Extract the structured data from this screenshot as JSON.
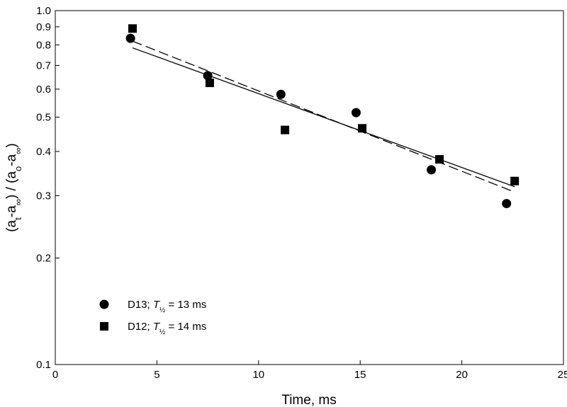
{
  "chart_data": {
    "type": "scatter",
    "title": "",
    "xlabel": "Time, ms",
    "ylabel": "(at-a∞) / (ao-a∞)",
    "xlim": [
      0,
      25
    ],
    "ylim": [
      0.1,
      1.0
    ],
    "yscale": "log",
    "x_ticks": [
      0,
      5,
      10,
      15,
      20,
      25
    ],
    "y_ticks": [
      0.1,
      0.2,
      0.3,
      0.4,
      0.5,
      0.6,
      0.7,
      0.8,
      0.9,
      1.0
    ],
    "x_tick_labels": [
      "0",
      "5",
      "10",
      "15",
      "20",
      "25"
    ],
    "y_tick_labels": [
      "0.1",
      "0.2",
      "0.3",
      "0.4",
      "0.5",
      "0.6",
      "0.7",
      "0.8",
      "0.9",
      "1.0"
    ],
    "grid": false,
    "legend_position": "bottom-left",
    "series": [
      {
        "name": "D13",
        "half_life_label": "13 ms",
        "marker": "circle",
        "fit_line": "solid",
        "x": [
          3.7,
          7.5,
          11.1,
          14.8,
          18.5,
          22.2
        ],
        "y": [
          0.835,
          0.655,
          0.58,
          0.515,
          0.355,
          0.285
        ],
        "fit": {
          "x": [
            3.8,
            22.6
          ],
          "y": [
            0.785,
            0.318
          ]
        }
      },
      {
        "name": "D12",
        "half_life_label": "14 ms",
        "marker": "square",
        "fit_line": "dashed",
        "x": [
          3.8,
          7.6,
          11.3,
          15.1,
          18.9,
          22.6
        ],
        "y": [
          0.89,
          0.625,
          0.46,
          0.465,
          0.38,
          0.33
        ],
        "fit": {
          "x": [
            3.8,
            22.6
          ],
          "y": [
            0.82,
            0.307
          ]
        }
      }
    ]
  }
}
